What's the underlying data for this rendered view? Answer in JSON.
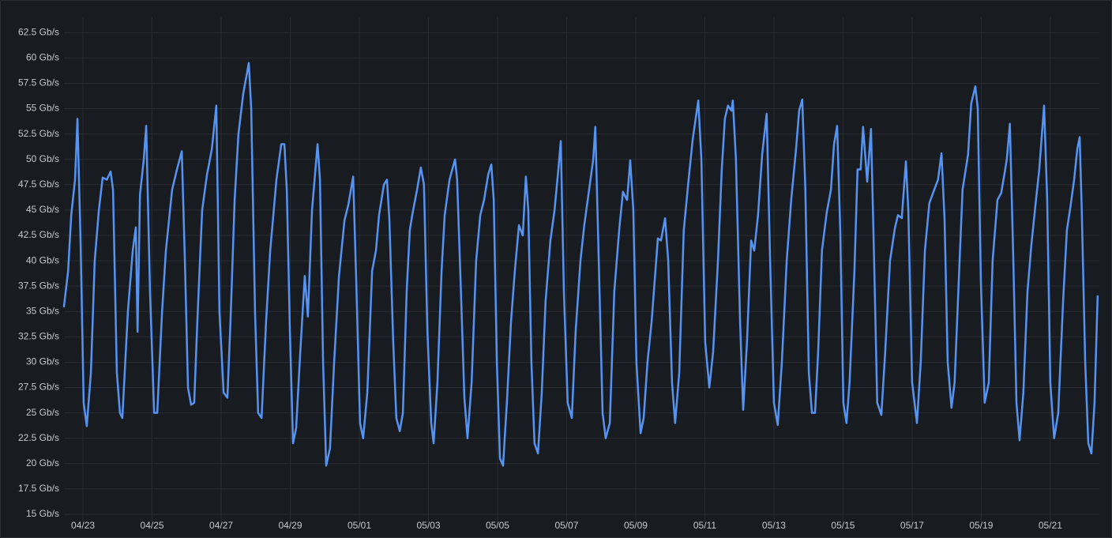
{
  "chart_data": {
    "type": "line",
    "color": "#5794f2",
    "grid": true,
    "xlim": [
      -0.55,
      29.42
    ],
    "ylim": [
      14.3,
      64
    ],
    "xticks": [
      {
        "value": 0,
        "label": "04/23"
      },
      {
        "value": 2,
        "label": "04/25"
      },
      {
        "value": 4,
        "label": "04/27"
      },
      {
        "value": 6,
        "label": "04/29"
      },
      {
        "value": 8,
        "label": "05/01"
      },
      {
        "value": 10,
        "label": "05/03"
      },
      {
        "value": 12,
        "label": "05/05"
      },
      {
        "value": 14,
        "label": "05/07"
      },
      {
        "value": 16,
        "label": "05/09"
      },
      {
        "value": 18,
        "label": "05/11"
      },
      {
        "value": 20,
        "label": "05/13"
      },
      {
        "value": 22,
        "label": "05/15"
      },
      {
        "value": 24,
        "label": "05/17"
      },
      {
        "value": 26,
        "label": "05/19"
      },
      {
        "value": 28,
        "label": "05/21"
      }
    ],
    "yticks": [
      {
        "value": 15,
        "label": "15 Gb/s"
      },
      {
        "value": 17.5,
        "label": "17.5 Gb/s"
      },
      {
        "value": 20,
        "label": "20 Gb/s"
      },
      {
        "value": 22.5,
        "label": "22.5 Gb/s"
      },
      {
        "value": 25,
        "label": "25 Gb/s"
      },
      {
        "value": 27.5,
        "label": "27.5 Gb/s"
      },
      {
        "value": 30,
        "label": "30 Gb/s"
      },
      {
        "value": 32.5,
        "label": "32.5 Gb/s"
      },
      {
        "value": 35,
        "label": "35 Gb/s"
      },
      {
        "value": 37.5,
        "label": "37.5 Gb/s"
      },
      {
        "value": 40,
        "label": "40 Gb/s"
      },
      {
        "value": 42.5,
        "label": "42.5 Gb/s"
      },
      {
        "value": 45,
        "label": "45 Gb/s"
      },
      {
        "value": 47.5,
        "label": "47.5 Gb/s"
      },
      {
        "value": 50,
        "label": "50 Gb/s"
      },
      {
        "value": 52.5,
        "label": "52.5 Gb/s"
      },
      {
        "value": 55,
        "label": "55 Gb/s"
      },
      {
        "value": 57.5,
        "label": "57.5 Gb/s"
      },
      {
        "value": 60,
        "label": "60 Gb/s"
      },
      {
        "value": 62.5,
        "label": "62.5 Gb/s"
      }
    ],
    "x": [
      -0.55,
      -0.43,
      -0.34,
      -0.23,
      -0.16,
      -0.07,
      0.02,
      0.11,
      0.23,
      0.34,
      0.46,
      0.57,
      0.69,
      0.8,
      0.87,
      0.98,
      1.07,
      1.14,
      1.3,
      1.44,
      1.53,
      1.58,
      1.65,
      1.76,
      1.83,
      1.94,
      2.06,
      2.15,
      2.29,
      2.4,
      2.58,
      2.72,
      2.86,
      2.95,
      3.04,
      3.13,
      3.22,
      3.31,
      3.45,
      3.59,
      3.73,
      3.86,
      3.95,
      4.07,
      4.18,
      4.27,
      4.39,
      4.5,
      4.64,
      4.8,
      4.87,
      4.98,
      5.07,
      5.17,
      5.3,
      5.42,
      5.6,
      5.74,
      5.83,
      5.9,
      5.99,
      6.08,
      6.17,
      6.29,
      6.42,
      6.51,
      6.63,
      6.79,
      6.86,
      6.95,
      7.04,
      7.15,
      7.27,
      7.41,
      7.57,
      7.68,
      7.82,
      7.91,
      8.02,
      8.11,
      8.23,
      8.37,
      8.48,
      8.57,
      8.71,
      8.8,
      8.87,
      8.98,
      9.07,
      9.17,
      9.26,
      9.37,
      9.46,
      9.53,
      9.67,
      9.78,
      9.87,
      9.97,
      10.08,
      10.15,
      10.26,
      10.38,
      10.47,
      10.61,
      10.77,
      10.83,
      10.93,
      11.04,
      11.13,
      11.25,
      11.38,
      11.5,
      11.61,
      11.73,
      11.82,
      11.89,
      11.98,
      12.07,
      12.16,
      12.27,
      12.39,
      12.5,
      12.62,
      12.73,
      12.82,
      12.89,
      12.98,
      13.07,
      13.17,
      13.28,
      13.39,
      13.53,
      13.65,
      13.76,
      13.83,
      13.92,
      14.03,
      14.15,
      14.26,
      14.4,
      14.51,
      14.65,
      14.77,
      14.83,
      14.93,
      15.04,
      15.13,
      15.25,
      15.38,
      15.52,
      15.63,
      15.75,
      15.84,
      15.93,
      16.02,
      16.14,
      16.23,
      16.34,
      16.46,
      16.57,
      16.64,
      16.73,
      16.85,
      16.94,
      17.05,
      17.14,
      17.26,
      17.39,
      17.53,
      17.65,
      17.81,
      17.9,
      18.01,
      18.13,
      18.24,
      18.38,
      18.49,
      18.58,
      18.67,
      18.77,
      18.81,
      18.9,
      19.02,
      19.11,
      19.22,
      19.34,
      19.43,
      19.54,
      19.66,
      19.79,
      19.89,
      20,
      20.11,
      20.23,
      20.37,
      20.5,
      20.64,
      20.73,
      20.82,
      20.91,
      21.01,
      21.1,
      21.19,
      21.28,
      21.39,
      21.53,
      21.65,
      21.74,
      21.83,
      21.92,
      22.01,
      22.1,
      22.19,
      22.33,
      22.42,
      22.51,
      22.58,
      22.7,
      22.81,
      22.9,
      22.99,
      23.11,
      23.22,
      23.36,
      23.5,
      23.59,
      23.7,
      23.82,
      23.89,
      24,
      24.14,
      24.25,
      24.37,
      24.5,
      24.64,
      24.75,
      24.85,
      24.94,
      25.03,
      25.14,
      25.23,
      25.35,
      25.46,
      25.62,
      25.71,
      25.83,
      25.9,
      25.99,
      26.1,
      26.22,
      26.33,
      26.47,
      26.58,
      26.67,
      26.74,
      26.83,
      26.93,
      27.02,
      27.11,
      27.22,
      27.34,
      27.45,
      27.57,
      27.68,
      27.82,
      27.91,
      28,
      28.11,
      28.23,
      28.37,
      28.48,
      28.59,
      28.69,
      28.78,
      28.85,
      28.91,
      29.01,
      29.1,
      29.19,
      29.28,
      29.37
    ],
    "values": [
      35.5,
      39,
      44.5,
      48,
      54,
      42,
      26,
      23.7,
      29,
      40,
      45,
      48.2,
      48,
      48.8,
      47,
      29,
      25,
      24.5,
      35,
      41,
      43.3,
      33,
      46.5,
      50,
      53.3,
      37,
      25,
      25,
      35,
      41,
      47,
      49,
      50.8,
      40,
      27.5,
      25.8,
      26,
      34,
      45,
      48.5,
      51,
      55.3,
      35,
      27,
      26.5,
      34,
      46,
      52.5,
      56.5,
      59.5,
      55,
      35,
      25,
      24.5,
      34,
      41,
      48,
      51.5,
      51.5,
      47,
      33,
      22,
      23.5,
      31,
      38.5,
      34.5,
      45,
      51.5,
      48,
      30,
      19.8,
      21.5,
      30,
      38.5,
      44,
      45.5,
      48.3,
      38,
      24,
      22.5,
      27,
      39,
      41,
      44.5,
      47.5,
      48,
      44,
      32,
      24.5,
      23.2,
      25,
      37,
      43,
      44.5,
      47,
      49.2,
      47.5,
      33,
      24,
      22,
      28,
      39,
      44.5,
      48,
      50,
      48,
      38,
      26.5,
      22.5,
      28,
      40,
      44.5,
      46,
      48.5,
      49.5,
      46,
      30,
      20.5,
      19.8,
      26,
      34,
      39,
      43.5,
      42.5,
      48.3,
      45,
      30,
      22,
      21,
      27,
      36,
      42,
      45,
      49,
      51.8,
      37,
      26,
      24.5,
      33,
      40,
      43.5,
      47,
      50,
      53.2,
      40,
      25,
      22.5,
      24,
      37,
      43,
      46.8,
      46,
      49.9,
      45,
      30,
      23,
      24.5,
      30,
      34,
      39,
      42.2,
      42,
      44.2,
      40,
      28,
      24,
      29,
      43,
      48,
      52,
      55.8,
      50,
      32,
      27.5,
      31,
      40,
      49,
      54,
      55.3,
      54.8,
      55.8,
      50,
      34,
      25.3,
      32,
      42,
      41,
      44.5,
      50.5,
      54.5,
      40,
      26,
      23.8,
      30,
      40,
      46,
      51,
      54.8,
      55.9,
      47,
      29,
      25,
      25,
      31,
      41,
      44.8,
      47,
      51.5,
      53.3,
      43,
      26,
      24,
      28,
      39,
      49,
      49,
      53.2,
      47.8,
      53,
      40,
      26,
      24.8,
      31,
      40,
      43.2,
      44.5,
      44.2,
      49.8,
      45,
      28,
      24,
      30,
      41,
      45.7,
      47,
      48,
      50.6,
      44,
      30,
      25.5,
      28,
      38,
      47,
      50.5,
      55.5,
      57.2,
      55,
      38,
      26,
      28,
      40,
      46,
      46.7,
      48.5,
      50,
      53.5,
      40,
      26,
      22.3,
      27,
      37,
      41.5,
      45.5,
      49,
      55.3,
      46,
      28,
      22.5,
      25,
      36,
      43,
      45.5,
      48,
      51,
      52.2,
      45,
      30,
      22,
      21,
      26,
      36.5
    ]
  }
}
